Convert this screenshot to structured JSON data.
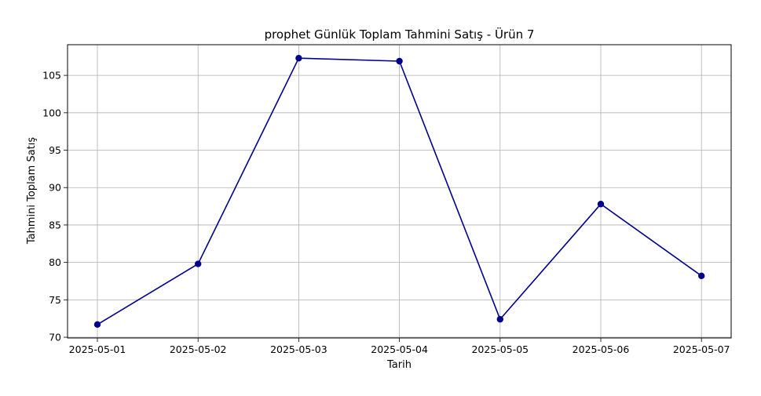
{
  "chart_data": {
    "type": "line",
    "title": "prophet Günlük Toplam Tahmini Satış - Ürün 7",
    "xlabel": "Tarih",
    "ylabel": "Tahmini Toplam Satış",
    "categories": [
      "2025-05-01",
      "2025-05-02",
      "2025-05-03",
      "2025-05-04",
      "2025-05-05",
      "2025-05-06",
      "2025-05-07"
    ],
    "series": [
      {
        "values": [
          71.7,
          79.8,
          107.3,
          106.9,
          72.4,
          87.8,
          78.2
        ],
        "color": "#00008b",
        "marker": "circle"
      }
    ],
    "yticks": [
      70,
      75,
      80,
      85,
      90,
      95,
      100,
      105
    ],
    "ylim": [
      69.9,
      109.1
    ],
    "grid": true,
    "legend": "none"
  }
}
